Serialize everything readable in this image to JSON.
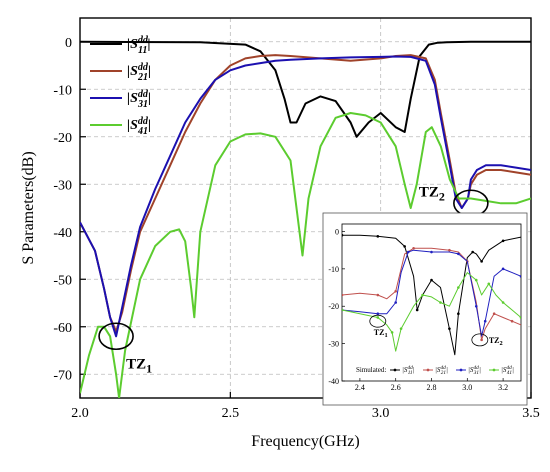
{
  "chart_data": [
    {
      "type": "line",
      "xlabel": "Frequency(GHz)",
      "ylabel": "S Parameters(dB)",
      "xlim": [
        2.0,
        3.5
      ],
      "ylim": [
        -75,
        5
      ],
      "xticks": [
        "2.0",
        "2.5",
        "3.0",
        "3.5"
      ],
      "yticks": [
        "0",
        "-10",
        "-20",
        "-30",
        "-40",
        "-50",
        "-60",
        "-70"
      ],
      "grid": true,
      "legend": "top-center",
      "series": [
        {
          "name": "|S11dd|",
          "label_main": "|S",
          "label_sup": "dd",
          "label_sub": "11",
          "label_end": "|",
          "color": "#000000",
          "x": [
            2.0,
            2.4,
            2.55,
            2.6,
            2.65,
            2.68,
            2.7,
            2.72,
            2.75,
            2.8,
            2.85,
            2.9,
            2.92,
            2.96,
            3.0,
            3.05,
            3.08,
            3.1,
            3.13,
            3.16,
            3.19,
            3.22,
            3.3,
            3.5
          ],
          "y": [
            0,
            -0.1,
            -0.6,
            -2,
            -6,
            -12,
            -17,
            -17,
            -13,
            -11.5,
            -12.5,
            -17,
            -20,
            -17,
            -15,
            -18,
            -19,
            -12,
            -3,
            -0.6,
            -0.2,
            -0.1,
            0,
            0
          ]
        },
        {
          "name": "|S21dd|",
          "label_main": "|S",
          "label_sup": "dd",
          "label_sub": "21",
          "label_end": "|",
          "color": "#a0432a",
          "x": [
            2.0,
            2.05,
            2.08,
            2.1,
            2.12,
            2.14,
            2.17,
            2.2,
            2.25,
            2.3,
            2.35,
            2.4,
            2.45,
            2.5,
            2.55,
            2.6,
            2.65,
            2.7,
            2.8,
            2.9,
            3.0,
            3.05,
            3.1,
            3.15,
            3.18,
            3.2,
            3.23,
            3.25,
            3.27,
            3.29,
            3.3,
            3.32,
            3.35,
            3.4,
            3.45,
            3.5
          ],
          "y": [
            -38,
            -44,
            -52,
            -58,
            -61,
            -57,
            -48,
            -40,
            -33,
            -26,
            -19,
            -13,
            -8,
            -5,
            -3.5,
            -3,
            -2.8,
            -3,
            -3.5,
            -4,
            -3.5,
            -3,
            -2.8,
            -3.5,
            -8,
            -15,
            -25,
            -32,
            -35,
            -33,
            -30,
            -28,
            -27,
            -27,
            -27.5,
            -28
          ]
        },
        {
          "name": "|S31dd|",
          "label_main": "|S",
          "label_sup": "dd",
          "label_sub": "31",
          "label_end": "|",
          "color": "#1c10b0",
          "x": [
            2.0,
            2.05,
            2.08,
            2.1,
            2.12,
            2.14,
            2.17,
            2.2,
            2.25,
            2.3,
            2.35,
            2.4,
            2.45,
            2.5,
            2.55,
            2.6,
            2.65,
            2.7,
            2.8,
            2.9,
            3.0,
            3.05,
            3.1,
            3.15,
            3.18,
            3.2,
            3.23,
            3.25,
            3.27,
            3.29,
            3.3,
            3.32,
            3.35,
            3.4,
            3.45,
            3.5
          ],
          "y": [
            -38,
            -44,
            -52,
            -58,
            -62,
            -56,
            -47,
            -39,
            -31,
            -24,
            -17,
            -12,
            -8,
            -6,
            -5,
            -4.5,
            -4,
            -3.8,
            -3.5,
            -3.3,
            -3.2,
            -3.1,
            -3.2,
            -4,
            -9,
            -16,
            -26,
            -33,
            -35,
            -33,
            -29,
            -27,
            -26,
            -26,
            -26.5,
            -27
          ]
        },
        {
          "name": "|S41dd|",
          "label_main": "|S",
          "label_sup": "dd",
          "label_sub": "41",
          "label_end": "|",
          "color": "#5ccc2f",
          "x": [
            2.0,
            2.03,
            2.06,
            2.08,
            2.1,
            2.12,
            2.13,
            2.15,
            2.2,
            2.25,
            2.3,
            2.33,
            2.35,
            2.37,
            2.38,
            2.4,
            2.45,
            2.5,
            2.55,
            2.6,
            2.65,
            2.7,
            2.72,
            2.74,
            2.76,
            2.8,
            2.85,
            2.9,
            2.95,
            3.0,
            3.05,
            3.08,
            3.1,
            3.12,
            3.15,
            3.17,
            3.2,
            3.23,
            3.26,
            3.3,
            3.35,
            3.4,
            3.45,
            3.5
          ],
          "y": [
            -74,
            -66,
            -60,
            -60,
            -62,
            -70,
            -75,
            -65,
            -50,
            -43,
            -40,
            -39.5,
            -42,
            -52,
            -58,
            -40,
            -26,
            -21,
            -19.5,
            -19.3,
            -20,
            -25,
            -35,
            -45,
            -33,
            -22,
            -16,
            -15,
            -15.5,
            -17,
            -22,
            -30,
            -35,
            -30,
            -19,
            -18,
            -22,
            -29,
            -33,
            -33,
            -33.5,
            -34,
            -34,
            -33
          ]
        }
      ],
      "annotations": [
        {
          "label": "TZ",
          "sub": "1",
          "x": 2.12,
          "y": -62
        },
        {
          "label": "TZ",
          "sub": "2",
          "x": 3.3,
          "y": -34
        }
      ]
    },
    {
      "type": "line",
      "xlim": [
        2.3,
        3.3
      ],
      "ylim": [
        -40,
        2
      ],
      "xticks": [
        "2.4",
        "2.6",
        "2.8",
        "3.0",
        "3.2"
      ],
      "yticks": [
        "0",
        "-10",
        "-20",
        "-30",
        "-40"
      ],
      "legend": "bottom",
      "legend_title": "Simulated:",
      "series": [
        {
          "name": "|S11dd|",
          "label_main": "|S",
          "label_sup": "dd",
          "label_sub": "11",
          "label_end": "|",
          "color": "#000000",
          "x": [
            2.3,
            2.4,
            2.5,
            2.6,
            2.65,
            2.7,
            2.72,
            2.75,
            2.8,
            2.85,
            2.9,
            2.93,
            2.95,
            3.0,
            3.03,
            3.05,
            3.08,
            3.12,
            3.2,
            3.3
          ],
          "y": [
            -1,
            -1,
            -1.3,
            -1.8,
            -4,
            -12,
            -21,
            -17,
            -13,
            -15,
            -26,
            -33,
            -22,
            -7,
            -5.5,
            -6,
            -8,
            -5,
            -2.5,
            -1.5
          ]
        },
        {
          "name": "|S21dd|",
          "label_main": "|S",
          "label_sup": "dd",
          "label_sub": "21",
          "label_end": "|",
          "color": "#c0504d",
          "x": [
            2.3,
            2.4,
            2.5,
            2.55,
            2.6,
            2.65,
            2.7,
            2.8,
            2.9,
            2.95,
            3.0,
            3.05,
            3.08,
            3.1,
            3.15,
            3.2,
            3.25,
            3.3
          ],
          "y": [
            -17,
            -16.5,
            -17,
            -18,
            -16,
            -6,
            -4.5,
            -4.5,
            -5,
            -5.5,
            -8,
            -19,
            -29,
            -26,
            -22,
            -23,
            -24,
            -25
          ]
        },
        {
          "name": "|S31dd|",
          "label_main": "|S",
          "label_sup": "dd",
          "label_sub": "31",
          "label_end": "|",
          "color": "#2020c0",
          "x": [
            2.3,
            2.4,
            2.5,
            2.55,
            2.6,
            2.63,
            2.67,
            2.7,
            2.8,
            2.9,
            2.95,
            3.0,
            3.05,
            3.08,
            3.1,
            3.15,
            3.2,
            3.25,
            3.3
          ],
          "y": [
            -21,
            -21.5,
            -22,
            -22,
            -19,
            -11,
            -5.5,
            -5,
            -5.5,
            -5.5,
            -6,
            -8,
            -20,
            -28,
            -24,
            -12,
            -10,
            -11,
            -12
          ]
        },
        {
          "name": "|S41dd|",
          "label_main": "|S",
          "label_sup": "dd",
          "label_sub": "41",
          "label_end": "|",
          "color": "#5ccc2f",
          "x": [
            2.3,
            2.4,
            2.5,
            2.55,
            2.58,
            2.6,
            2.63,
            2.7,
            2.75,
            2.8,
            2.85,
            2.9,
            2.95,
            3.0,
            3.05,
            3.08,
            3.12,
            3.16,
            3.2,
            3.25,
            3.3
          ],
          "y": [
            -21,
            -22,
            -23,
            -25,
            -27,
            -32,
            -26,
            -20,
            -17,
            -17.5,
            -19,
            -20,
            -15,
            -11,
            -13,
            -17,
            -14,
            -17,
            -19,
            -21,
            -23
          ]
        }
      ],
      "annotations": [
        {
          "label": "TZ",
          "sub": "1",
          "x": 2.5,
          "y": -24
        },
        {
          "label": "TZ",
          "sub": "2",
          "x": 3.07,
          "y": -29
        }
      ]
    }
  ]
}
